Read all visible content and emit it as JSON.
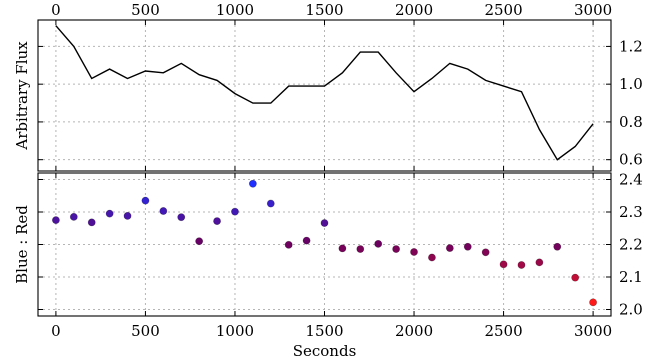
{
  "chart_data": [
    {
      "type": "line",
      "ylabel": "Arbitrary Flux",
      "xlabel": "",
      "xlim": [
        -100,
        3100
      ],
      "ylim": [
        0.54,
        1.34
      ],
      "x_ticks": [
        0,
        500,
        1000,
        1500,
        2000,
        2500,
        3000
      ],
      "y_ticks": [
        0.6,
        0.8,
        1.0,
        1.2
      ],
      "x_tick_labels": [
        "0",
        "500",
        "1000",
        "1500",
        "2000",
        "2500",
        "3000"
      ],
      "y_tick_labels": [
        "0.6",
        "0.8",
        "1.0",
        "1.2"
      ],
      "x_tick_position": "top",
      "y_tick_position": "right",
      "grid": true,
      "line_color": "#000000",
      "x": [
        0,
        100,
        200,
        300,
        400,
        500,
        600,
        700,
        800,
        900,
        1000,
        1100,
        1200,
        1300,
        1400,
        1500,
        1600,
        1700,
        1800,
        1900,
        2000,
        2100,
        2200,
        2300,
        2400,
        2500,
        2600,
        2700,
        2800,
        2900,
        3000
      ],
      "y": [
        1.31,
        1.2,
        1.03,
        1.08,
        1.03,
        1.07,
        1.06,
        1.11,
        1.05,
        1.02,
        0.95,
        0.9,
        0.9,
        0.99,
        0.99,
        0.99,
        1.06,
        1.17,
        1.17,
        1.06,
        0.96,
        1.03,
        1.11,
        1.08,
        1.02,
        0.99,
        0.96,
        0.76,
        0.6,
        0.67,
        0.79
      ]
    },
    {
      "type": "scatter",
      "ylabel": "Blue : Red",
      "xlabel": "Seconds",
      "xlim": [
        -100,
        3100
      ],
      "ylim": [
        1.98,
        2.42
      ],
      "x_ticks": [
        0,
        500,
        1000,
        1500,
        2000,
        2500,
        3000
      ],
      "y_ticks": [
        2.0,
        2.1,
        2.2,
        2.3,
        2.4
      ],
      "x_tick_labels": [
        "0",
        "500",
        "1000",
        "1500",
        "2000",
        "2500",
        "3000"
      ],
      "y_tick_labels": [
        "2.0",
        "2.1",
        "2.2",
        "2.3",
        "2.4"
      ],
      "y_tick_position": "right",
      "grid": true,
      "color_map": {
        "low": "#ff1a1a",
        "mid": "#6a0060",
        "high": "#1f2fff"
      },
      "x": [
        0,
        100,
        200,
        300,
        400,
        500,
        600,
        700,
        800,
        900,
        1000,
        1100,
        1200,
        1300,
        1400,
        1500,
        1600,
        1700,
        1800,
        1900,
        2000,
        2100,
        2200,
        2300,
        2400,
        2500,
        2600,
        2700,
        2800,
        2900,
        3000
      ],
      "y": [
        2.275,
        2.285,
        2.268,
        2.295,
        2.288,
        2.335,
        2.303,
        2.284,
        2.21,
        2.272,
        2.301,
        2.387,
        2.326,
        2.199,
        2.212,
        2.266,
        2.188,
        2.186,
        2.202,
        2.186,
        2.177,
        2.16,
        2.189,
        2.193,
        2.176,
        2.139,
        2.137,
        2.145,
        2.193,
        2.098,
        2.022
      ]
    }
  ]
}
